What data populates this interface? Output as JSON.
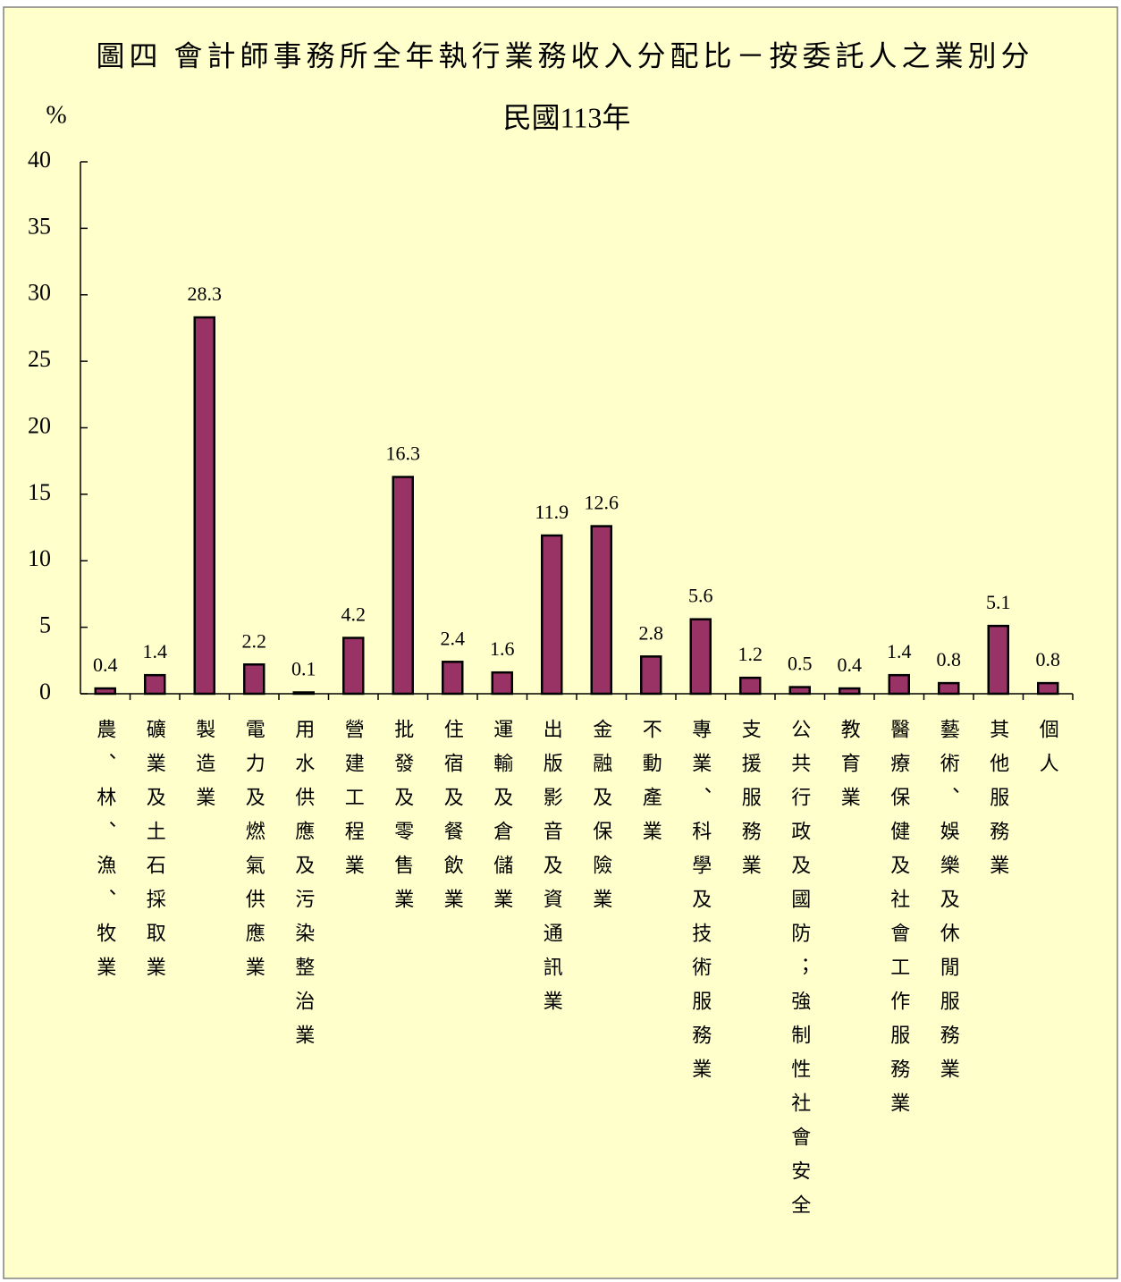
{
  "chart_data": {
    "type": "bar",
    "title": "圖四  會計師事務所全年執行業務收入分配比－按委託人之業別分",
    "subtitle": "民國113年",
    "y_label": "%",
    "categories": [
      "農、林、漁、牧業",
      "礦業及土石採取業",
      "製造業",
      "電力及燃氣供應業",
      "用水供應及污染整治業",
      "營建工程業",
      "批發及零售業",
      "住宿及餐飲業",
      "運輸及倉儲業",
      "出版影音及資通訊業",
      "金融及保險業",
      "不動產業",
      "專業、科學及技術服務業",
      "支援服務業",
      "公共行政及國防；強制性社會安全",
      "教育業",
      "醫療保健及社會工作服務業",
      "藝術、娛樂及休閒服務業",
      "其他服務業",
      "個人"
    ],
    "values": [
      0.4,
      1.4,
      28.3,
      2.2,
      0.1,
      4.2,
      16.3,
      2.4,
      1.6,
      11.9,
      12.6,
      2.8,
      5.6,
      1.2,
      0.5,
      0.4,
      1.4,
      0.8,
      5.1,
      0.8
    ],
    "color": "#993366",
    "ylim": [
      0,
      40
    ],
    "yticks": [
      0,
      5,
      10,
      15,
      20,
      25,
      30,
      35,
      40
    ]
  }
}
